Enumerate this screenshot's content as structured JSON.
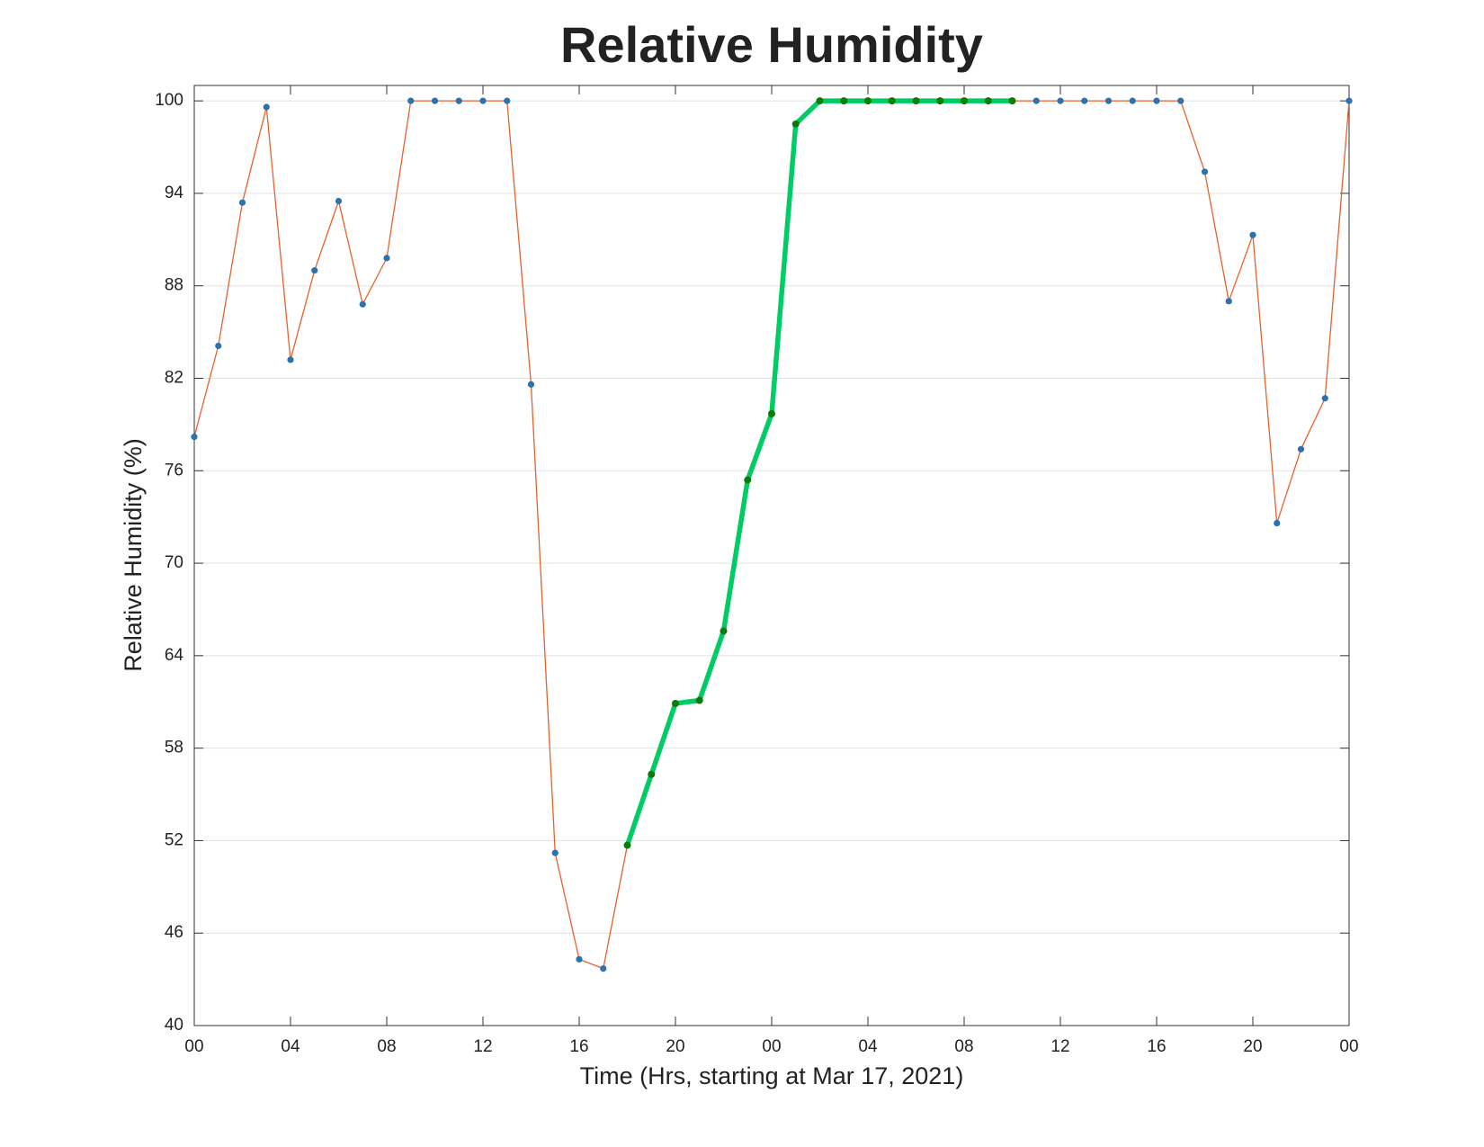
{
  "chart_data": {
    "type": "line",
    "title": "Relative Humidity",
    "xlabel": "Time (Hrs, starting at Mar 17, 2021)",
    "ylabel": "Relative Humidity (%)",
    "x": [
      0,
      1,
      2,
      3,
      4,
      5,
      6,
      7,
      8,
      9,
      10,
      11,
      12,
      13,
      14,
      15,
      16,
      17,
      18,
      19,
      20,
      21,
      22,
      23,
      24,
      25,
      26,
      27,
      28,
      29,
      30,
      31,
      32,
      33,
      34,
      35,
      36,
      37,
      38,
      39,
      40,
      41,
      42,
      43,
      44,
      45,
      46,
      47,
      48
    ],
    "series": [
      {
        "color": "#e8602c",
        "marker_color": "#2a72b0",
        "values": [
          78.2,
          84.1,
          93.4,
          99.6,
          83.2,
          89.0,
          93.5,
          86.8,
          89.8,
          100,
          100,
          100,
          100,
          100,
          81.6,
          51.2,
          44.3,
          43.7,
          51.7,
          56.3,
          60.9,
          61.1,
          65.6,
          75.4,
          79.7,
          98.5,
          100,
          100,
          100,
          100,
          100,
          100,
          100,
          100,
          100,
          100,
          100,
          100,
          100,
          100,
          100,
          100,
          95.4,
          87.0,
          91.3,
          72.6,
          77.4,
          80.7,
          100
        ]
      },
      {
        "color": "#00cc66",
        "marker_color": "#0a7a0a",
        "values": [
          null,
          null,
          null,
          null,
          null,
          null,
          null,
          null,
          null,
          null,
          null,
          null,
          null,
          null,
          null,
          null,
          null,
          null,
          51.7,
          56.3,
          60.9,
          61.1,
          65.6,
          75.4,
          79.7,
          98.5,
          100,
          100,
          100,
          100,
          100,
          100,
          100,
          100,
          100,
          null,
          null,
          null,
          null,
          null,
          null,
          null,
          null,
          null,
          null,
          null,
          null,
          null,
          null
        ]
      }
    ],
    "xlim": [
      0,
      48
    ],
    "xticks": [
      {
        "value": 0,
        "label": "00"
      },
      {
        "value": 4,
        "label": "04"
      },
      {
        "value": 8,
        "label": "08"
      },
      12,
      16,
      20,
      {
        "value": 24,
        "label": "00"
      },
      {
        "value": 28,
        "label": "04"
      },
      {
        "value": 32,
        "label": "08"
      },
      {
        "value": 36,
        "label": "12"
      },
      {
        "value": 40,
        "label": "16"
      },
      {
        "value": 44,
        "label": "20"
      },
      {
        "value": 48,
        "label": "00"
      }
    ],
    "ylim": [
      40,
      101
    ],
    "yticks": [
      40,
      46,
      52,
      58,
      64,
      70,
      76,
      82,
      88,
      94,
      100
    ],
    "grid": true
  }
}
